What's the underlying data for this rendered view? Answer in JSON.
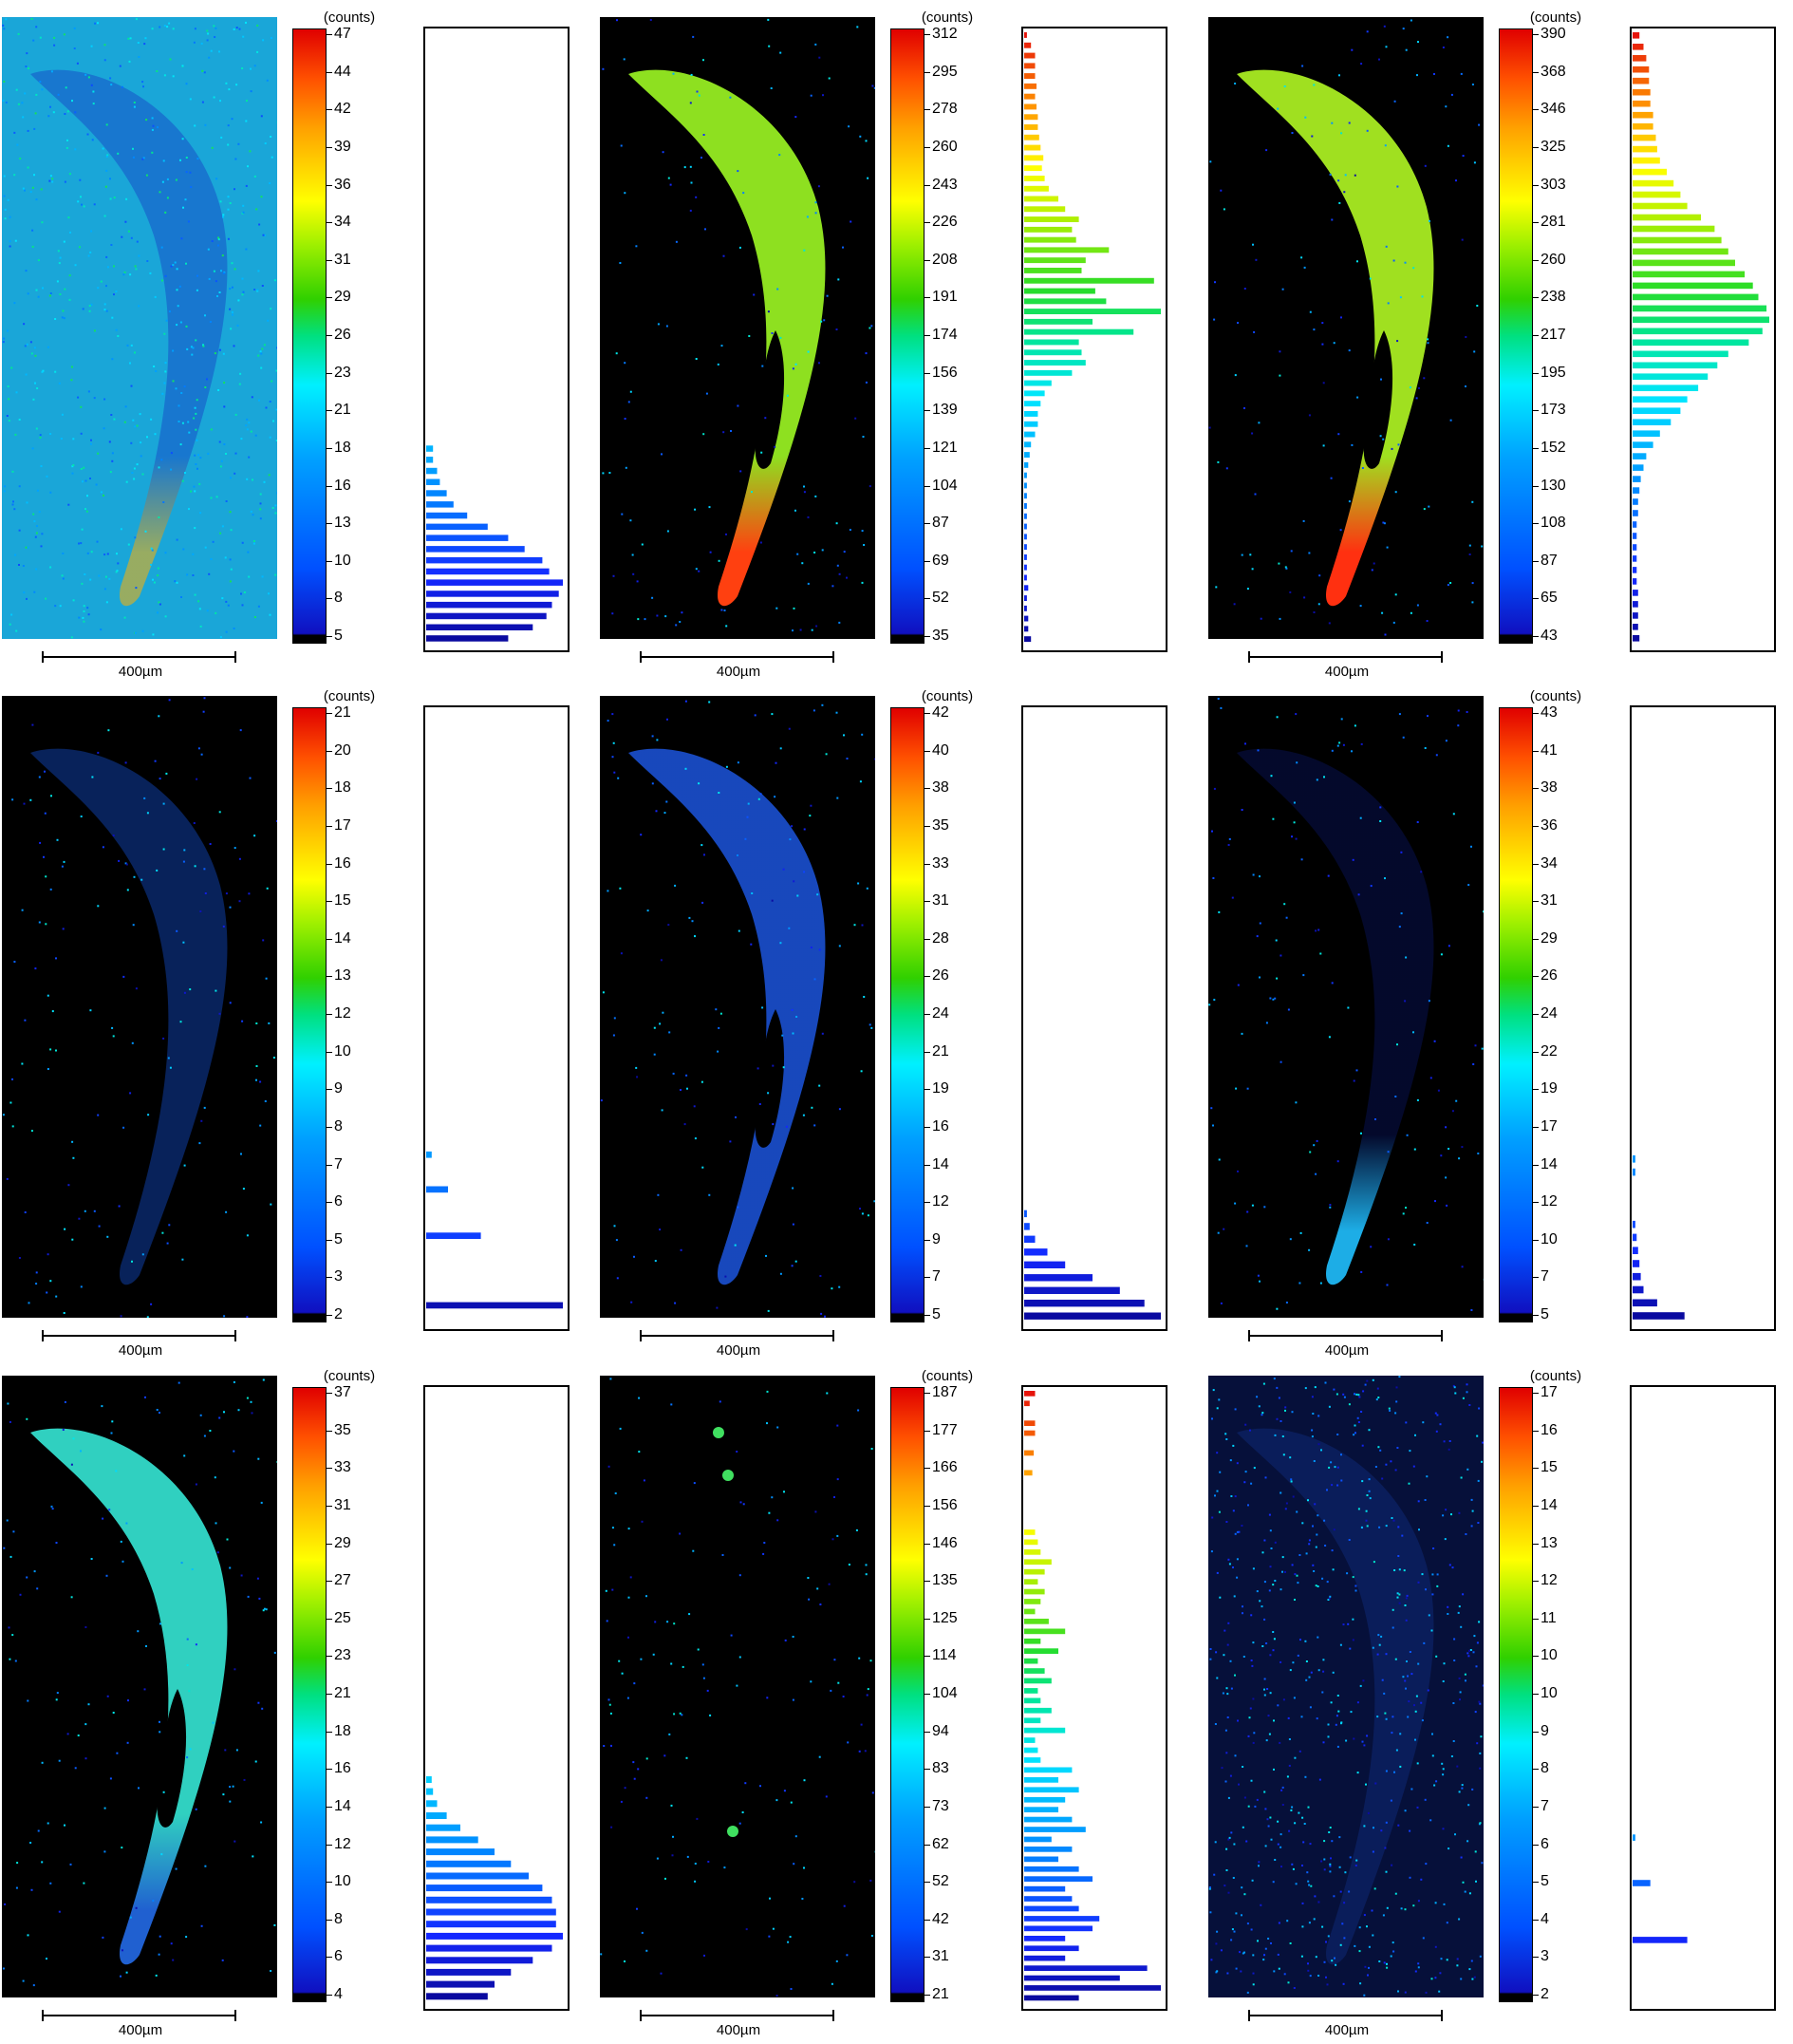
{
  "scale_bar_label": "400µm",
  "colorbar_unit": "(counts)",
  "panels": [
    {
      "id": "r1c1",
      "background": "noise",
      "ticks": [
        "47",
        "44",
        "42",
        "39",
        "36",
        "34",
        "31",
        "29",
        "26",
        "23",
        "21",
        "18",
        "16",
        "13",
        "10",
        "8",
        "5"
      ],
      "histogram": [
        0,
        0,
        0,
        0,
        0,
        0,
        0,
        0,
        0,
        0,
        0,
        0,
        0,
        0,
        0,
        0,
        0,
        0,
        0,
        0,
        0,
        0,
        0,
        0,
        0,
        0,
        0,
        0,
        0,
        0,
        0,
        0,
        0,
        0,
        0,
        0,
        0,
        0.05,
        0.05,
        0.08,
        0.1,
        0.15,
        0.2,
        0.3,
        0.45,
        0.6,
        0.72,
        0.85,
        0.9,
        1.0,
        0.97,
        0.92,
        0.88,
        0.78,
        0.6
      ],
      "hist_w": 110
    },
    {
      "id": "r1c2",
      "background": "black",
      "ticks": [
        "312",
        "295",
        "278",
        "260",
        "243",
        "226",
        "208",
        "191",
        "174",
        "156",
        "139",
        "121",
        "104",
        "87",
        "69",
        "52",
        "35"
      ],
      "histogram": [
        0.02,
        0.05,
        0.08,
        0.08,
        0.08,
        0.09,
        0.08,
        0.09,
        0.1,
        0.1,
        0.11,
        0.12,
        0.14,
        0.13,
        0.15,
        0.18,
        0.25,
        0.3,
        0.4,
        0.35,
        0.38,
        0.62,
        0.45,
        0.42,
        0.95,
        0.52,
        0.6,
        1.0,
        0.5,
        0.8,
        0.4,
        0.42,
        0.45,
        0.35,
        0.2,
        0.15,
        0.12,
        0.1,
        0.1,
        0.08,
        0.05,
        0.04,
        0.03,
        0.02,
        0.02,
        0.02,
        0.02,
        0.02,
        0.02,
        0.02,
        0.02,
        0.02,
        0.02,
        0.02,
        0.03,
        0.02,
        0.02,
        0.03,
        0.03,
        0.05
      ],
      "hist_w": 110
    },
    {
      "id": "r1c3",
      "background": "black",
      "ticks": [
        "390",
        "368",
        "346",
        "325",
        "303",
        "281",
        "260",
        "238",
        "217",
        "195",
        "173",
        "152",
        "130",
        "108",
        "87",
        "65",
        "43"
      ],
      "histogram": [
        0.05,
        0.08,
        0.1,
        0.12,
        0.12,
        0.13,
        0.13,
        0.15,
        0.15,
        0.17,
        0.18,
        0.2,
        0.25,
        0.3,
        0.35,
        0.4,
        0.5,
        0.6,
        0.65,
        0.7,
        0.75,
        0.82,
        0.88,
        0.92,
        0.98,
        1.0,
        0.95,
        0.85,
        0.7,
        0.62,
        0.55,
        0.48,
        0.4,
        0.35,
        0.28,
        0.2,
        0.15,
        0.1,
        0.08,
        0.06,
        0.05,
        0.04,
        0.04,
        0.03,
        0.03,
        0.03,
        0.03,
        0.03,
        0.03,
        0.04,
        0.04,
        0.04,
        0.04,
        0.05
      ],
      "hist_w": 112
    },
    {
      "id": "r2c1",
      "background": "black",
      "ticks": [
        "21",
        "20",
        "18",
        "17",
        "16",
        "15",
        "14",
        "13",
        "12",
        "10",
        "9",
        "8",
        "7",
        "6",
        "5",
        "3",
        "2"
      ],
      "histogram": [
        0,
        0,
        0,
        0,
        0,
        0,
        0,
        0,
        0,
        0,
        0,
        0,
        0,
        0,
        0,
        0,
        0,
        0,
        0,
        0,
        0,
        0,
        0,
        0,
        0,
        0,
        0,
        0,
        0,
        0,
        0,
        0,
        0,
        0,
        0,
        0,
        0,
        0,
        0.04,
        0,
        0,
        0.16,
        0,
        0,
        0,
        0.4,
        0,
        0,
        0,
        0,
        0,
        1.0,
        0
      ],
      "hist_w": 110
    },
    {
      "id": "r2c2",
      "background": "black",
      "ticks": [
        "42",
        "40",
        "38",
        "35",
        "33",
        "31",
        "28",
        "26",
        "24",
        "21",
        "19",
        "16",
        "14",
        "12",
        "9",
        "7",
        "5"
      ],
      "histogram": [
        0,
        0,
        0,
        0,
        0,
        0,
        0,
        0,
        0,
        0,
        0,
        0,
        0,
        0,
        0,
        0,
        0,
        0,
        0,
        0,
        0,
        0,
        0,
        0,
        0,
        0,
        0,
        0,
        0,
        0,
        0,
        0,
        0,
        0,
        0,
        0,
        0,
        0,
        0,
        0.02,
        0.04,
        0.08,
        0.17,
        0.3,
        0.5,
        0.7,
        0.88,
        1.0
      ],
      "hist_w": 110
    },
    {
      "id": "r2c3",
      "background": "black",
      "ticks": [
        "43",
        "41",
        "38",
        "36",
        "34",
        "31",
        "29",
        "26",
        "24",
        "22",
        "19",
        "17",
        "14",
        "12",
        "10",
        "7",
        "5"
      ],
      "histogram": [
        0,
        0,
        0,
        0,
        0,
        0,
        0,
        0,
        0,
        0,
        0,
        0,
        0,
        0,
        0,
        0,
        0,
        0,
        0,
        0,
        0,
        0,
        0,
        0,
        0,
        0,
        0,
        0,
        0,
        0,
        0,
        0,
        0,
        0,
        0.02,
        0.02,
        0,
        0,
        0,
        0.02,
        0.03,
        0.04,
        0.05,
        0.06,
        0.08,
        0.18,
        0.38
      ],
      "hist_w": 110
    },
    {
      "id": "r3c1",
      "background": "black",
      "ticks": [
        "37",
        "35",
        "33",
        "31",
        "29",
        "27",
        "25",
        "23",
        "21",
        "18",
        "16",
        "14",
        "12",
        "10",
        "8",
        "6",
        "4"
      ],
      "histogram": [
        0,
        0,
        0,
        0,
        0,
        0,
        0,
        0,
        0,
        0,
        0,
        0,
        0,
        0,
        0,
        0,
        0,
        0,
        0,
        0,
        0,
        0,
        0,
        0,
        0,
        0,
        0,
        0,
        0,
        0,
        0,
        0,
        0.04,
        0.05,
        0.08,
        0.15,
        0.25,
        0.38,
        0.5,
        0.62,
        0.75,
        0.85,
        0.92,
        0.95,
        0.95,
        1.0,
        0.92,
        0.78,
        0.62,
        0.5,
        0.45
      ],
      "hist_w": 110
    },
    {
      "id": "r3c2",
      "background": "black",
      "ticks": [
        "187",
        "177",
        "166",
        "156",
        "146",
        "135",
        "125",
        "114",
        "104",
        "94",
        "83",
        "73",
        "62",
        "52",
        "42",
        "31",
        "21"
      ],
      "histogram": [
        0.08,
        0.04,
        0,
        0.08,
        0.08,
        0,
        0.07,
        0,
        0.06,
        0,
        0,
        0,
        0,
        0,
        0.08,
        0.1,
        0.12,
        0.2,
        0.15,
        0.1,
        0.15,
        0.12,
        0.08,
        0.18,
        0.3,
        0.12,
        0.25,
        0.1,
        0.15,
        0.2,
        0.1,
        0.12,
        0.2,
        0.12,
        0.3,
        0.08,
        0.1,
        0.12,
        0.35,
        0.25,
        0.4,
        0.3,
        0.25,
        0.35,
        0.45,
        0.2,
        0.35,
        0.25,
        0.4,
        0.5,
        0.3,
        0.35,
        0.4,
        0.55,
        0.5,
        0.3,
        0.4,
        0.3,
        0.9,
        0.7,
        1.0,
        0.4
      ],
      "hist_w": 112
    },
    {
      "id": "r3c3",
      "background": "noise-dark",
      "ticks": [
        "17",
        "16",
        "15",
        "14",
        "13",
        "12",
        "11",
        "10",
        "10",
        "9",
        "8",
        "7",
        "6",
        "5",
        "4",
        "3",
        "2"
      ],
      "histogram": [
        0,
        0,
        0,
        0,
        0,
        0,
        0,
        0,
        0,
        0,
        0,
        0,
        0,
        0,
        0,
        0,
        0,
        0,
        0,
        0,
        0,
        0,
        0,
        0,
        0,
        0,
        0,
        0,
        0,
        0,
        0,
        0,
        0,
        0,
        0,
        0,
        0,
        0,
        0,
        0.02,
        0,
        0,
        0,
        0.13,
        0,
        0,
        0,
        0,
        0.4,
        0,
        0,
        0,
        0,
        0
      ],
      "hist_w": 110
    }
  ],
  "colormap": [
    "#000000",
    "#1a1aff",
    "#0070ff",
    "#00c0ff",
    "#00ffe0",
    "#00e070",
    "#40e000",
    "#b0f000",
    "#ffff00",
    "#ffb000",
    "#ff6000",
    "#e00000"
  ]
}
